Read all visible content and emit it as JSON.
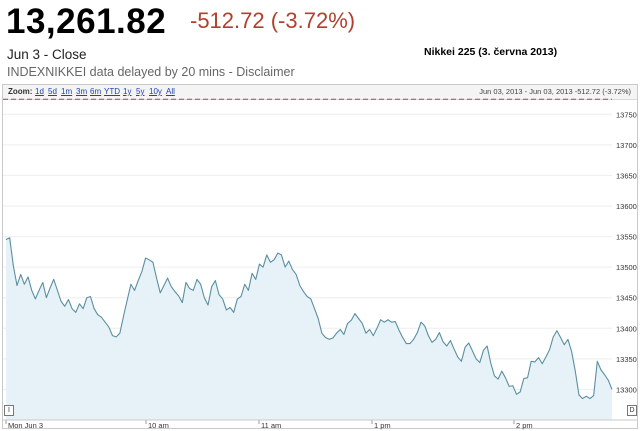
{
  "header": {
    "price": "13,261.82",
    "change": "-512.72 (-3.72%)",
    "date_close": "Jun 3 - Close",
    "delay_note": "INDEXNIKKEI data delayed by 20 mins - Disclaimer",
    "chart_title": "Nikkei 225 (3. června 2013)"
  },
  "zoom": {
    "label": "Zoom:",
    "options": [
      "1d",
      "5d",
      "1m",
      "3m",
      "6m",
      "YTD",
      "1y",
      "5y",
      "10y",
      "All"
    ],
    "range_text": "Jun 03, 2013 - Jun 03, 2013 -512.72 (-3.72%)"
  },
  "handles": {
    "left": "I",
    "right": "D"
  },
  "colors": {
    "line": "#5a8fa0",
    "fill": "#e6f2f8",
    "change": "#b0402e",
    "prev_close": "#8a5a45"
  },
  "chart_data": {
    "type": "area",
    "title": "Nikkei 225 (3. června 2013)",
    "x_tick_labels": [
      "Mon Jun 3",
      "10 am",
      "11 am",
      "1 pm",
      "2 pm"
    ],
    "y_ticks": [
      13300,
      13350,
      13400,
      13450,
      13500,
      13550,
      13600,
      13650,
      13700,
      13750
    ],
    "ylim": [
      13250,
      13775
    ],
    "previous_close": 13774.54,
    "grid": true,
    "series": [
      {
        "values": [
          13545,
          13548,
          13502,
          13470,
          13488,
          13472,
          13484,
          13462,
          13448,
          13462,
          13475,
          13450,
          13466,
          13480,
          13462,
          13444,
          13436,
          13447,
          13432,
          13426,
          13440,
          13432,
          13450,
          13452,
          13432,
          13422,
          13418,
          13410,
          13402,
          13388,
          13386,
          13392,
          13420,
          13446,
          13472,
          13462,
          13478,
          13493,
          13515,
          13512,
          13508,
          13482,
          13458,
          13470,
          13482,
          13468,
          13460,
          13453,
          13442,
          13475,
          13465,
          13462,
          13480,
          13472,
          13450,
          13438,
          13468,
          13478,
          13455,
          13448,
          13430,
          13434,
          13426,
          13448,
          13452,
          13472,
          13462,
          13490,
          13480,
          13505,
          13500,
          13520,
          13508,
          13512,
          13523,
          13520,
          13500,
          13510,
          13496,
          13488,
          13470,
          13460,
          13452,
          13448,
          13432,
          13416,
          13392,
          13385,
          13382,
          13384,
          13392,
          13398,
          13390,
          13408,
          13413,
          13424,
          13416,
          13408,
          13392,
          13398,
          13388,
          13400,
          13414,
          13410,
          13414,
          13410,
          13411,
          13397,
          13385,
          13375,
          13375,
          13382,
          13393,
          13410,
          13404,
          13388,
          13377,
          13382,
          13393,
          13378,
          13371,
          13380,
          13366,
          13353,
          13346,
          13369,
          13376,
          13363,
          13350,
          13344,
          13364,
          13371,
          13343,
          13322,
          13317,
          13330,
          13319,
          13305,
          13306,
          13292,
          13296,
          13318,
          13319,
          13346,
          13345,
          13352,
          13342,
          13353,
          13365,
          13386,
          13396,
          13385,
          13373,
          13382,
          13362,
          13330,
          13291,
          13285,
          13289,
          13285,
          13290,
          13346,
          13332,
          13324,
          13315,
          13300
        ]
      }
    ]
  }
}
